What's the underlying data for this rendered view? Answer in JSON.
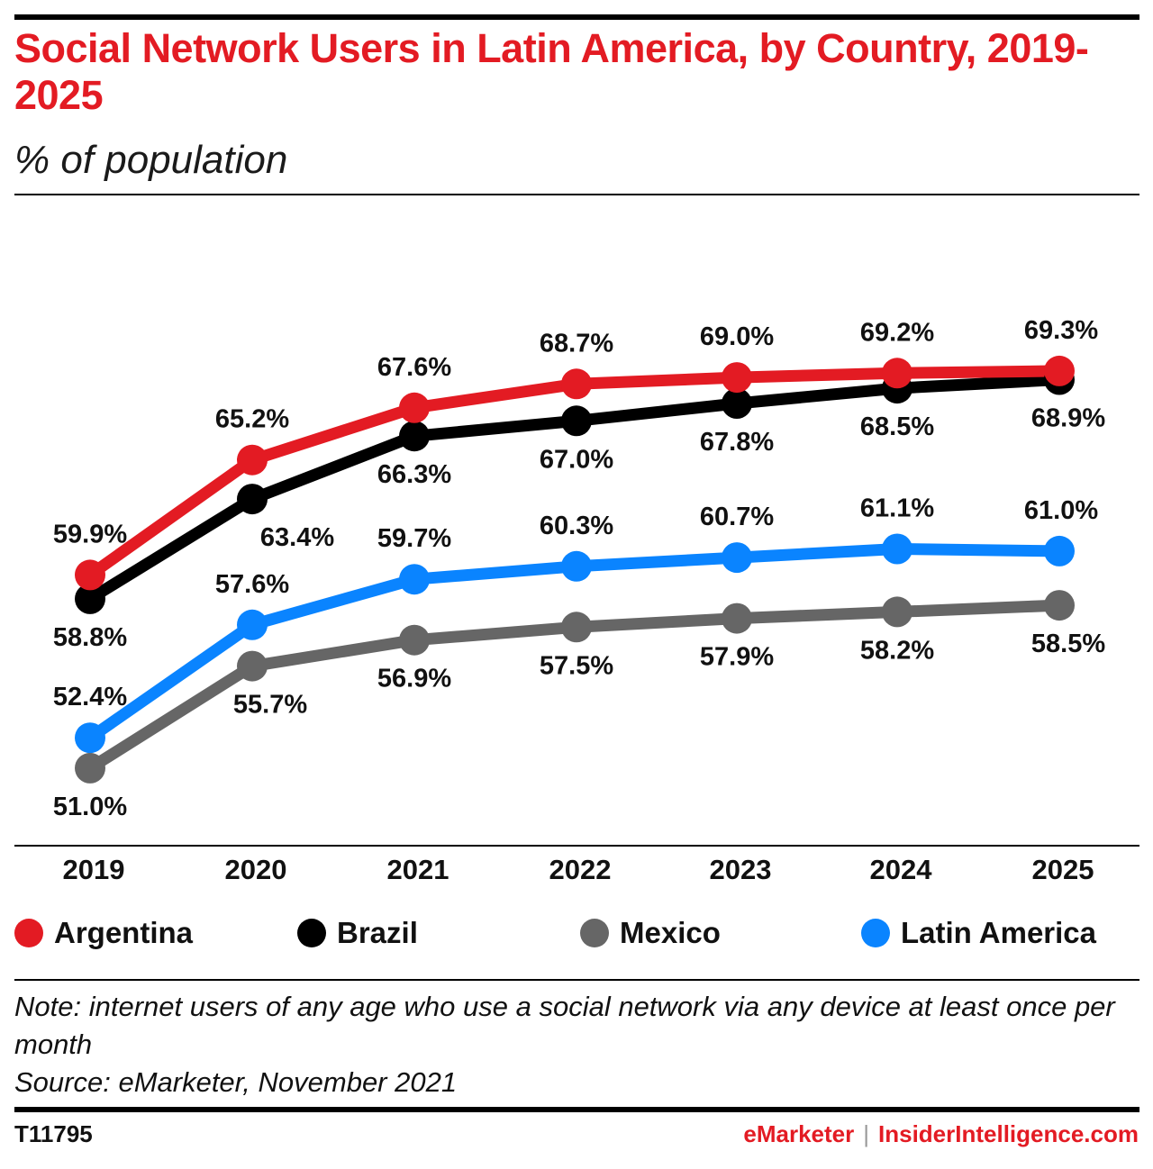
{
  "header": {
    "title": "Social Network Users in Latin America, by Country, 2019-2025",
    "subtitle": "% of population"
  },
  "chart_data": {
    "type": "line",
    "title": "Social Network Users in Latin America, by Country, 2019-2025",
    "subtitle": "% of population",
    "categories": [
      "2019",
      "2020",
      "2021",
      "2022",
      "2023",
      "2024",
      "2025"
    ],
    "ylim": [
      45,
      75
    ],
    "grid": false,
    "legend_position": "bottom",
    "series": [
      {
        "name": "Argentina",
        "color": "#e31b23",
        "values": [
          59.9,
          65.2,
          67.6,
          68.7,
          69.0,
          69.2,
          69.3
        ],
        "labels": [
          "59.9%",
          "65.2%",
          "67.6%",
          "68.7%",
          "69.0%",
          "69.2%",
          "69.3%"
        ]
      },
      {
        "name": "Brazil",
        "color": "#000000",
        "values": [
          58.8,
          63.4,
          66.3,
          67.0,
          67.8,
          68.5,
          68.9
        ],
        "labels": [
          "58.8%",
          "63.4%",
          "66.3%",
          "67.0%",
          "67.8%",
          "68.5%",
          "68.9%"
        ]
      },
      {
        "name": "Mexico",
        "color": "#666666",
        "values": [
          51.0,
          55.7,
          56.9,
          57.5,
          57.9,
          58.2,
          58.5
        ],
        "labels": [
          "51.0%",
          "55.7%",
          "56.9%",
          "57.5%",
          "57.9%",
          "58.2%",
          "58.5%"
        ]
      },
      {
        "name": "Latin America",
        "color": "#0a84ff",
        "values": [
          52.4,
          57.6,
          59.7,
          60.3,
          60.7,
          61.1,
          61.0
        ],
        "labels": [
          "52.4%",
          "57.6%",
          "59.7%",
          "60.3%",
          "60.7%",
          "61.1%",
          "61.0%"
        ]
      }
    ]
  },
  "legend": {
    "items": [
      {
        "label": "Argentina",
        "color": "#e31b23"
      },
      {
        "label": "Brazil",
        "color": "#000000"
      },
      {
        "label": "Mexico",
        "color": "#666666"
      },
      {
        "label": "Latin America",
        "color": "#0a84ff"
      }
    ]
  },
  "footer": {
    "note": "Note: internet users of any age who use a social network via any device at least once per month",
    "source": "Source: eMarketer, November 2021",
    "chart_id": "T11795",
    "brand_left": "eMarketer",
    "brand_separator": "|",
    "brand_right": "InsiderIntelligence.com"
  }
}
